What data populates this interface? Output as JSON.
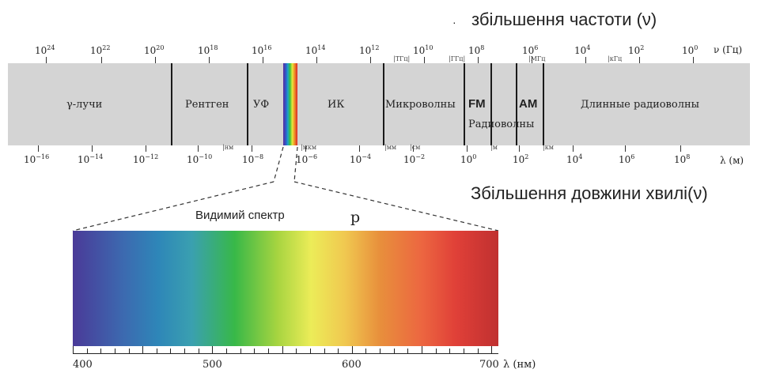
{
  "freq_heading": "збільшення частоти (ν)",
  "freq_heading_bullet": "·",
  "wave_heading": "Збільшення довжини хвилі(ν)",
  "freq_axis": {
    "unit": "ν (Гц)",
    "labels": [
      {
        "base": "10",
        "exp": "24"
      },
      {
        "base": "10",
        "exp": "22"
      },
      {
        "base": "10",
        "exp": "20"
      },
      {
        "base": "10",
        "exp": "18"
      },
      {
        "base": "10",
        "exp": "16"
      },
      {
        "base": "10",
        "exp": "14"
      },
      {
        "base": "10",
        "exp": "12"
      },
      {
        "base": "10",
        "exp": "10"
      },
      {
        "base": "10",
        "exp": "8"
      },
      {
        "base": "10",
        "exp": "6"
      },
      {
        "base": "10",
        "exp": "4"
      },
      {
        "base": "10",
        "exp": "2"
      },
      {
        "base": "10",
        "exp": "0"
      }
    ],
    "units": [
      "ТГц",
      "ГГц",
      "МГц",
      "кГц"
    ]
  },
  "wave_axis": {
    "unit": "λ (м)",
    "labels": [
      {
        "base": "10",
        "exp": "−16"
      },
      {
        "base": "10",
        "exp": "−14"
      },
      {
        "base": "10",
        "exp": "−12"
      },
      {
        "base": "10",
        "exp": "−10"
      },
      {
        "base": "10",
        "exp": "−8"
      },
      {
        "base": "10",
        "exp": "−6"
      },
      {
        "base": "10",
        "exp": "−4"
      },
      {
        "base": "10",
        "exp": "−2"
      },
      {
        "base": "10",
        "exp": "0"
      },
      {
        "base": "10",
        "exp": "2"
      },
      {
        "base": "10",
        "exp": "4"
      },
      {
        "base": "10",
        "exp": "6"
      },
      {
        "base": "10",
        "exp": "8"
      }
    ],
    "units": [
      "нм",
      "мкм",
      "мм",
      "см",
      "м",
      "км"
    ]
  },
  "regions": {
    "gamma": "γ-лучи",
    "xray": "Рентген",
    "uv": "УФ",
    "ir": "ИК",
    "microwave": "Микроволны",
    "fm": "FM",
    "am": "AM",
    "radio": "Радиоволны",
    "long_radio": "Длинные радиоволны"
  },
  "visible": {
    "title": "Видимий спектр",
    "marker": "p",
    "scale_labels": [
      "400",
      "500",
      "600",
      "700"
    ],
    "scale_unit": "λ (нм)"
  }
}
